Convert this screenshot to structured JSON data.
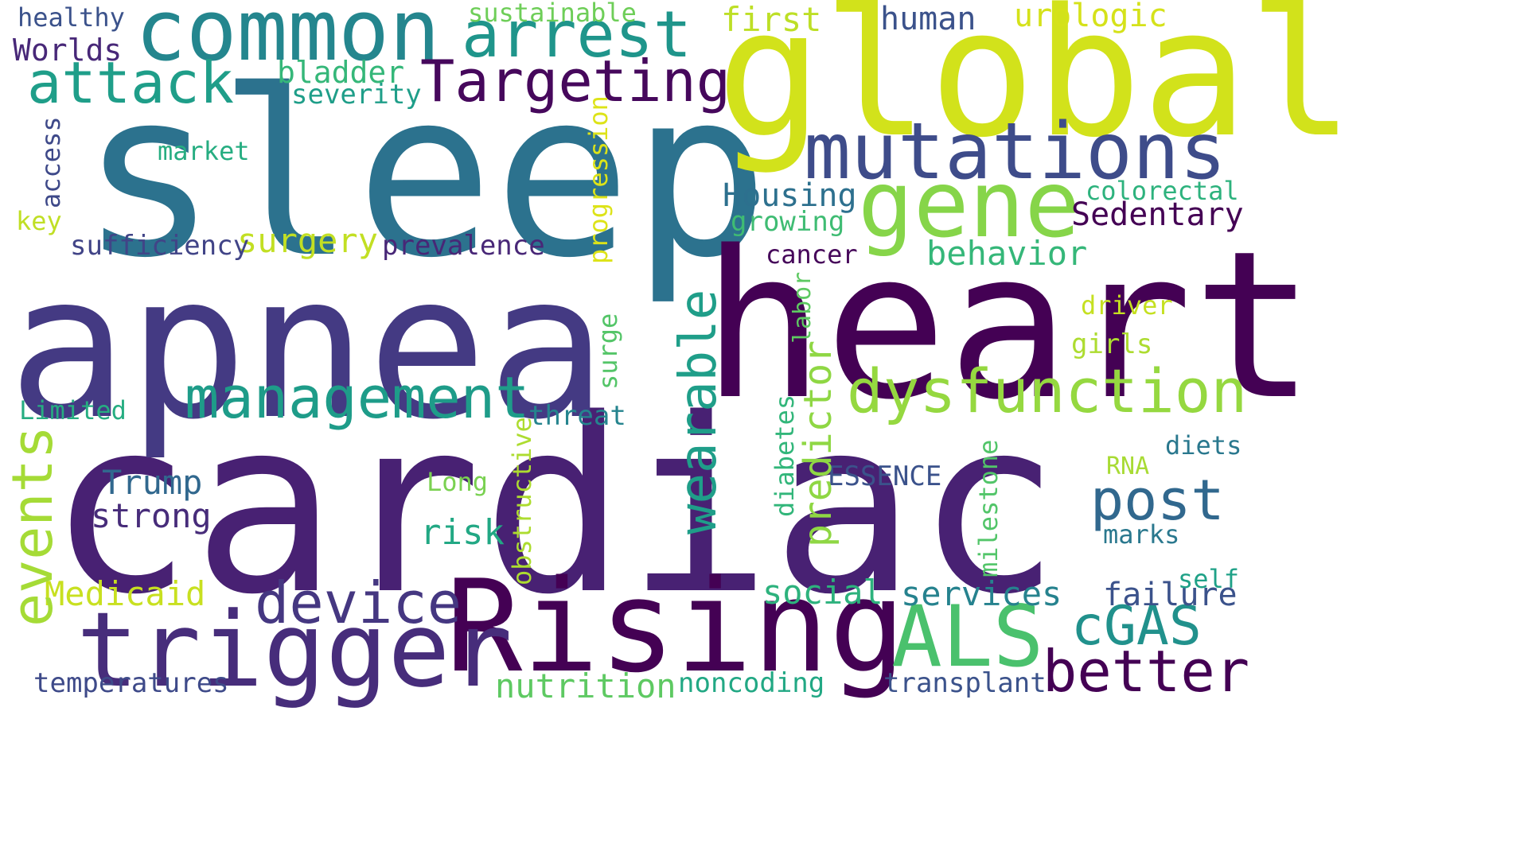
{
  "word_cloud": {
    "background": "#ffffff",
    "words": [
      {
        "text": "cardiac",
        "color": "#482173"
      },
      {
        "text": "sleep",
        "color": "#2c728e"
      },
      {
        "text": "apnea",
        "color": "#443a83"
      },
      {
        "text": "heart",
        "color": "#440154"
      },
      {
        "text": "global",
        "color": "#d2e21b"
      },
      {
        "text": "Rising",
        "color": "#440154"
      },
      {
        "text": "common",
        "color": "#24868e"
      },
      {
        "text": "trigger",
        "color": "#472d7b"
      },
      {
        "text": "mutations",
        "color": "#3e4c8a"
      },
      {
        "text": "gene",
        "color": "#86d549"
      },
      {
        "text": "arrest",
        "color": "#1f958b"
      },
      {
        "text": "attack",
        "color": "#1f9e89"
      },
      {
        "text": "Targeting",
        "color": "#46085c"
      },
      {
        "text": "dysfunction",
        "color": "#95d840"
      },
      {
        "text": "management",
        "color": "#1e9c89"
      },
      {
        "text": "ALS",
        "color": "#4ac16d"
      },
      {
        "text": "device",
        "color": "#453781"
      },
      {
        "text": "better",
        "color": "#440154"
      },
      {
        "text": "cGAS",
        "color": "#21918c"
      },
      {
        "text": "post",
        "color": "#31688e"
      },
      {
        "text": "wearable",
        "color": "#1f9e89"
      },
      {
        "text": "events",
        "color": "#a5db36"
      },
      {
        "text": "Housing",
        "color": "#2d708e"
      },
      {
        "text": "Sedentary",
        "color": "#440154"
      },
      {
        "text": "behavior",
        "color": "#35b779"
      },
      {
        "text": "failure",
        "color": "#3b528b"
      },
      {
        "text": "social",
        "color": "#2db27d"
      },
      {
        "text": "services",
        "color": "#26828e"
      },
      {
        "text": "nutrition",
        "color": "#5ec962"
      },
      {
        "text": "transplant",
        "color": "#3b528b"
      },
      {
        "text": "noncoding",
        "color": "#22a884"
      },
      {
        "text": "strong",
        "color": "#472c7a"
      },
      {
        "text": "Trump",
        "color": "#31688e"
      },
      {
        "text": "Medicaid",
        "color": "#c8e020"
      },
      {
        "text": "temperatures",
        "color": "#3e4a89"
      },
      {
        "text": "risk",
        "color": "#22a884"
      },
      {
        "text": "predictor",
        "color": "#8fd744"
      },
      {
        "text": "surgery",
        "color": "#c2df23"
      },
      {
        "text": "bladder",
        "color": "#35b779"
      },
      {
        "text": "severity",
        "color": "#1f9e89"
      },
      {
        "text": "first",
        "color": "#bddf26"
      },
      {
        "text": "human",
        "color": "#3b528b"
      },
      {
        "text": "urologic",
        "color": "#d5e21a"
      },
      {
        "text": "sustainable",
        "color": "#6ece58"
      },
      {
        "text": "healthy",
        "color": "#3b528b"
      },
      {
        "text": "Worlds",
        "color": "#482878"
      },
      {
        "text": "market",
        "color": "#26ad81"
      },
      {
        "text": "access",
        "color": "#3e4989"
      },
      {
        "text": "key",
        "color": "#c0df25"
      },
      {
        "text": "sufficiency",
        "color": "#414487"
      },
      {
        "text": "prevalence",
        "color": "#482777"
      },
      {
        "text": "progression",
        "color": "#dde318"
      },
      {
        "text": "growing",
        "color": "#3fbc73"
      },
      {
        "text": "colorectal",
        "color": "#2db27d"
      },
      {
        "text": "cancer",
        "color": "#46075a"
      },
      {
        "text": "labor",
        "color": "#5ec962"
      },
      {
        "text": "driver",
        "color": "#c5e021"
      },
      {
        "text": "girls",
        "color": "#addc30"
      },
      {
        "text": "surge",
        "color": "#54c568"
      },
      {
        "text": "diabetes",
        "color": "#32b67a"
      },
      {
        "text": "threat",
        "color": "#25848e"
      },
      {
        "text": "obstructive",
        "color": "#addc30"
      },
      {
        "text": "Long",
        "color": "#7ad151"
      },
      {
        "text": "ESSENCE",
        "color": "#3b528b"
      },
      {
        "text": "milestone",
        "color": "#52c569"
      },
      {
        "text": "diets",
        "color": "#2a788e"
      },
      {
        "text": "RNA",
        "color": "#a8db34"
      },
      {
        "text": "marks",
        "color": "#2a788e"
      },
      {
        "text": "self",
        "color": "#1fa187"
      },
      {
        "text": "Limited",
        "color": "#26ad81"
      }
    ]
  }
}
